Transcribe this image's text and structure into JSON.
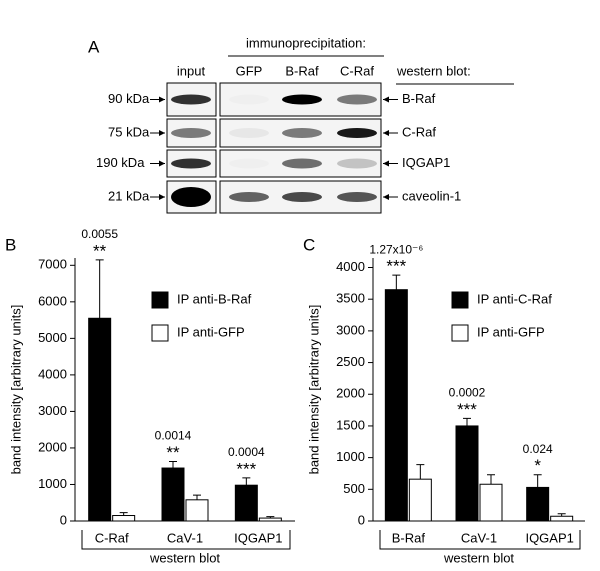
{
  "blot": {
    "panel": "A",
    "header": "immunoprecipitation:",
    "columns": [
      "input",
      "GFP",
      "B-Raf",
      "C-Raf"
    ],
    "readout": "western blot:",
    "sizes": [
      "90 kDa",
      "75 kDa",
      "190 kDa",
      "21 kDa"
    ],
    "proteins": [
      "B-Raf",
      "C-Raf",
      "IQGAP1",
      "caveolin-1"
    ]
  },
  "chart_data": [
    {
      "type": "bar",
      "panel": "B",
      "ylabel": "band intensity [arbitrary units]",
      "xlabel": "western blot",
      "categories": [
        "C-Raf",
        "CaV-1",
        "IQGAP1"
      ],
      "series": [
        {
          "name": "IP anti-B-Raf",
          "color": "#000000",
          "values": [
            5550,
            1450,
            980
          ],
          "errors": [
            1600,
            180,
            200
          ]
        },
        {
          "name": "IP anti-GFP",
          "color": "#ffffff",
          "values": [
            150,
            580,
            80
          ],
          "errors": [
            80,
            130,
            40
          ]
        }
      ],
      "p_values": [
        "0.0055",
        "0.0014",
        "0.0004"
      ],
      "significance": [
        "**",
        "**",
        "***"
      ],
      "ylim": [
        0,
        7200
      ],
      "yticks": [
        0,
        1000,
        2000,
        3000,
        4000,
        5000,
        6000,
        7000
      ]
    },
    {
      "type": "bar",
      "panel": "C",
      "ylabel": "band intensity [arbitrary units]",
      "xlabel": "western blot",
      "categories": [
        "B-Raf",
        "CaV-1",
        "IQGAP1"
      ],
      "series": [
        {
          "name": "IP anti-C-Raf",
          "color": "#000000",
          "values": [
            3650,
            1500,
            530
          ],
          "errors": [
            230,
            120,
            200
          ]
        },
        {
          "name": "IP anti-GFP",
          "color": "#ffffff",
          "values": [
            660,
            580,
            75
          ],
          "errors": [
            230,
            150,
            40
          ]
        }
      ],
      "p_values": [
        "1.27x10⁻⁶",
        "0.0002",
        "0.024"
      ],
      "significance": [
        "***",
        "***",
        "*"
      ],
      "ylim": [
        0,
        4150
      ],
      "yticks": [
        0,
        500,
        1000,
        1500,
        2000,
        2500,
        3000,
        3500,
        4000
      ]
    }
  ]
}
